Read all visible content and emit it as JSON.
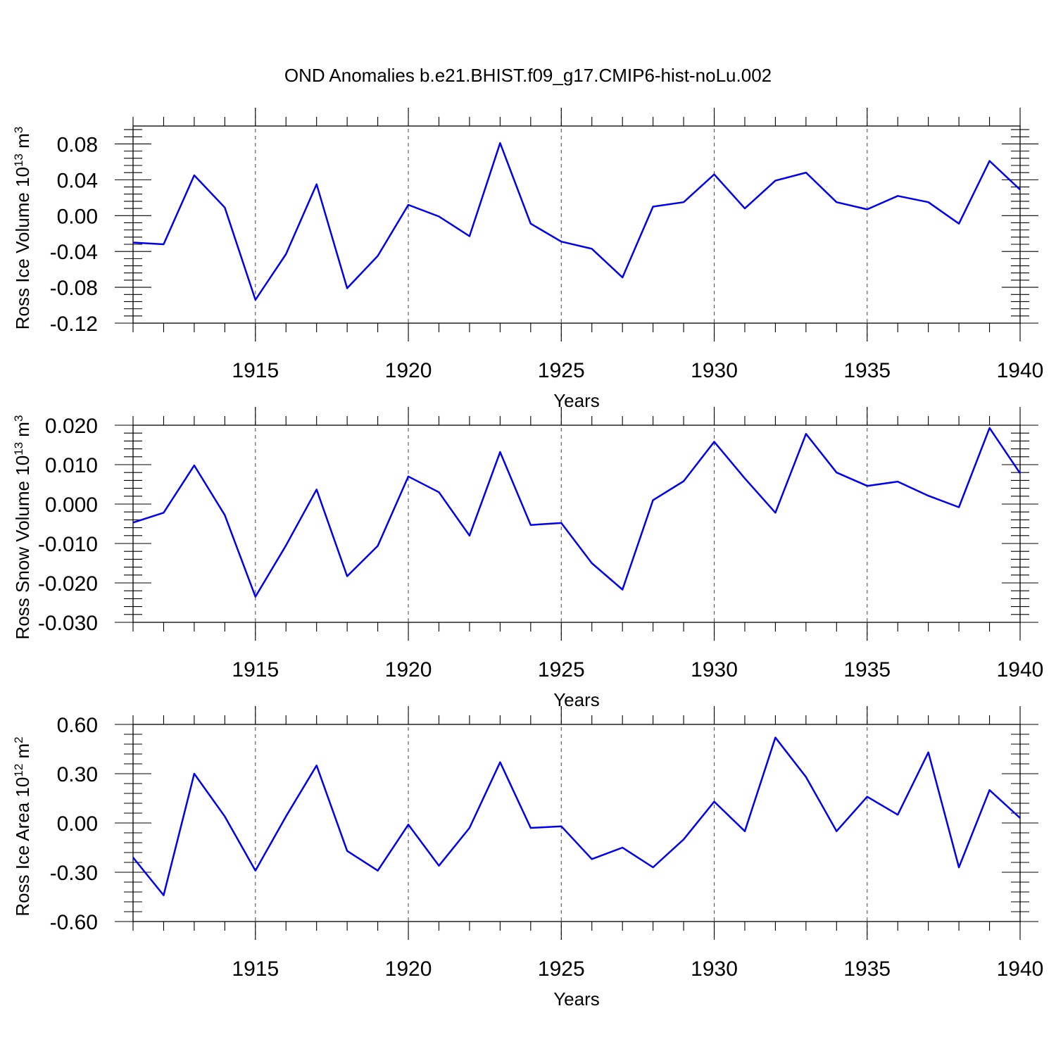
{
  "title": "OND Anomalies b.e21.BHIST.f09_g17.CMIP6-hist-noLu.002",
  "colors": {
    "line": "#0000ee",
    "frame": "#000000",
    "grid": "#555555"
  },
  "chart_data": [
    {
      "type": "line",
      "ylabel": "Ross Ice Volume 10",
      "ylabel_exp": "13",
      "ylabel_unit": " m",
      "ylabel_unit_exp": "3",
      "xlabel": "Years",
      "xlim": [
        1911,
        1940
      ],
      "ylim": [
        -0.12,
        0.1
      ],
      "yticks": [
        -0.12,
        -0.08,
        -0.04,
        0.0,
        0.04,
        0.08
      ],
      "ytick_labels": [
        "-0.12",
        "-0.08",
        "-0.04",
        "0.00",
        "0.04",
        "0.08"
      ],
      "xticks": [
        1915,
        1920,
        1925,
        1930,
        1935,
        1940
      ],
      "xtick_labels": [
        "1915",
        "1920",
        "1925",
        "1930",
        "1935",
        "1940"
      ],
      "x": [
        1911,
        1912,
        1913,
        1914,
        1915,
        1916,
        1917,
        1918,
        1919,
        1920,
        1921,
        1922,
        1923,
        1924,
        1925,
        1926,
        1927,
        1928,
        1929,
        1930,
        1931,
        1932,
        1933,
        1934,
        1935,
        1936,
        1937,
        1938,
        1939,
        1940
      ],
      "values": [
        -0.03,
        -0.032,
        0.045,
        0.009,
        -0.094,
        -0.043,
        0.035,
        -0.081,
        -0.045,
        0.012,
        -0.001,
        -0.023,
        0.081,
        -0.009,
        -0.029,
        -0.037,
        -0.069,
        0.01,
        0.015,
        0.046,
        0.008,
        0.039,
        0.048,
        0.015,
        0.007,
        0.022,
        0.015,
        -0.009,
        0.061,
        0.029
      ]
    },
    {
      "type": "line",
      "ylabel": "Ross Snow Volume 10",
      "ylabel_exp": "13",
      "ylabel_unit": " m",
      "ylabel_unit_exp": "3",
      "xlabel": "Years",
      "xlim": [
        1911,
        1940
      ],
      "ylim": [
        -0.03,
        0.02
      ],
      "yticks": [
        -0.03,
        -0.02,
        -0.01,
        0.0,
        0.01,
        0.02
      ],
      "ytick_labels": [
        "-0.030",
        "-0.020",
        "-0.010",
        "0.000",
        "0.010",
        "0.020"
      ],
      "xticks": [
        1915,
        1920,
        1925,
        1930,
        1935,
        1940
      ],
      "xtick_labels": [
        "1915",
        "1920",
        "1925",
        "1930",
        "1935",
        "1940"
      ],
      "x": [
        1911,
        1912,
        1913,
        1914,
        1915,
        1916,
        1917,
        1918,
        1919,
        1920,
        1921,
        1922,
        1923,
        1924,
        1925,
        1926,
        1927,
        1928,
        1929,
        1930,
        1931,
        1932,
        1933,
        1934,
        1935,
        1936,
        1937,
        1938,
        1939,
        1940
      ],
      "values": [
        -0.0047,
        -0.0022,
        0.0098,
        -0.0028,
        -0.0235,
        -0.0105,
        0.0037,
        -0.0183,
        -0.0106,
        0.007,
        0.003,
        -0.008,
        0.0132,
        -0.0053,
        -0.0048,
        -0.015,
        -0.0217,
        0.001,
        0.0058,
        0.0158,
        0.0065,
        -0.0022,
        0.0178,
        0.008,
        0.0046,
        0.0057,
        0.0021,
        -0.0008,
        0.0193,
        0.0078
      ]
    },
    {
      "type": "line",
      "ylabel": "Ross Ice Area 10",
      "ylabel_exp": "12",
      "ylabel_unit": " m",
      "ylabel_unit_exp": "2",
      "xlabel": "Years",
      "xlim": [
        1911,
        1940
      ],
      "ylim": [
        -0.6,
        0.6
      ],
      "yticks": [
        -0.6,
        -0.3,
        0.0,
        0.3,
        0.6
      ],
      "ytick_labels": [
        "-0.60",
        "-0.30",
        "0.00",
        "0.30",
        "0.60"
      ],
      "xticks": [
        1915,
        1920,
        1925,
        1930,
        1935,
        1940
      ],
      "xtick_labels": [
        "1915",
        "1920",
        "1925",
        "1930",
        "1935",
        "1940"
      ],
      "x": [
        1911,
        1912,
        1913,
        1914,
        1915,
        1916,
        1917,
        1918,
        1919,
        1920,
        1921,
        1922,
        1923,
        1924,
        1925,
        1926,
        1927,
        1928,
        1929,
        1930,
        1931,
        1932,
        1933,
        1934,
        1935,
        1936,
        1937,
        1938,
        1939,
        1940
      ],
      "values": [
        -0.21,
        -0.44,
        0.3,
        0.04,
        -0.29,
        0.04,
        0.35,
        -0.17,
        -0.29,
        -0.01,
        -0.26,
        -0.03,
        0.37,
        -0.03,
        -0.02,
        -0.22,
        -0.15,
        -0.27,
        -0.1,
        0.13,
        -0.05,
        0.52,
        0.28,
        -0.05,
        0.16,
        0.05,
        0.43,
        -0.27,
        0.2,
        0.03
      ]
    }
  ]
}
